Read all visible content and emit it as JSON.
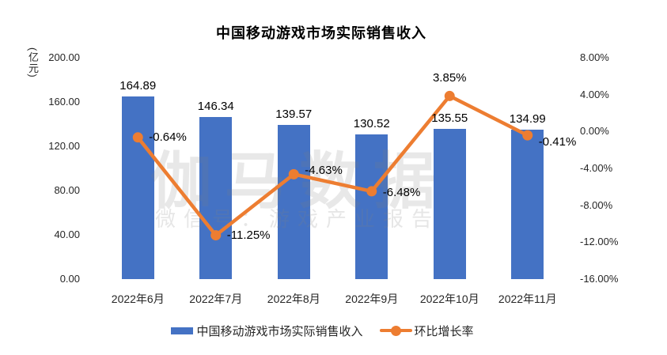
{
  "chart_data": {
    "type": "bar+line combo",
    "title": "中国移动游戏市场实际销售收入",
    "categories": [
      "2022年6月",
      "2022年7月",
      "2022年8月",
      "2022年9月",
      "2022年10月",
      "2022年11月"
    ],
    "series": [
      {
        "name": "中国移动游戏市场实际销售收入",
        "type": "bar",
        "axis": "left",
        "color": "#4472C4",
        "values": [
          164.89,
          146.34,
          139.57,
          130.52,
          135.55,
          134.99
        ]
      },
      {
        "name": "环比增长率",
        "type": "line",
        "axis": "right",
        "color": "#ED7D31",
        "values": [
          -0.64,
          -11.25,
          -4.63,
          -6.48,
          3.85,
          -0.41
        ]
      }
    ],
    "left_axis": {
      "unit": "(亿元)",
      "min": 0,
      "max": 200,
      "step": 40,
      "decimals": 2,
      "suffix": ""
    },
    "right_axis": {
      "min": -16,
      "max": 8,
      "step": 4,
      "decimals": 2,
      "suffix": "%"
    },
    "grid": false,
    "legend_position": "bottom",
    "data_labels": true,
    "label_placement": [
      "right",
      "right",
      "right",
      "right",
      "above",
      "right"
    ]
  },
  "watermark": {
    "line1": "伽马数据",
    "line2": "微信号：游戏产业报告"
  },
  "colors": {
    "bar": "#4472C4",
    "line": "#ED7D31",
    "text": "#262626",
    "background": "#FFFFFF"
  }
}
